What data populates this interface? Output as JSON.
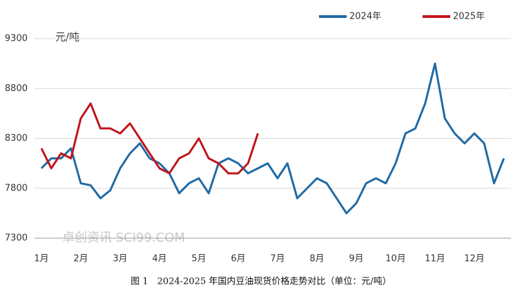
{
  "chart_data": {
    "type": "line",
    "caption": "图 1　2024-2025 年国内豆油现货价格走势对比（单位：元/吨）",
    "y_axis_label": "元/吨",
    "watermark": "卓创资讯 SCI99.COM",
    "categories": [
      "1月",
      null,
      null,
      null,
      "2月",
      null,
      null,
      null,
      "3月",
      null,
      null,
      null,
      "4月",
      null,
      null,
      null,
      "5月",
      null,
      null,
      null,
      "6月",
      null,
      null,
      null,
      "7月",
      null,
      null,
      null,
      "8月",
      null,
      null,
      null,
      "9月",
      null,
      null,
      null,
      "10月",
      null,
      null,
      null,
      "11月",
      null,
      null,
      null,
      "12月",
      null,
      null,
      null
    ],
    "series": [
      {
        "name": "2024年",
        "color": "#1f6aa5",
        "values": [
          8000,
          8100,
          8100,
          8200,
          7850,
          7830,
          7700,
          7780,
          8000,
          8150,
          8250,
          8100,
          8050,
          7950,
          7750,
          7850,
          7900,
          7750,
          8050,
          8100,
          8050,
          7950,
          8000,
          8050,
          7900,
          8050,
          7700,
          7800,
          7900,
          7850,
          7700,
          7550,
          7650,
          7850,
          7900,
          7850,
          8050,
          8350,
          8400,
          8650,
          9050,
          8500,
          8350,
          8250,
          8350,
          8250,
          7850,
          8100
        ]
      },
      {
        "name": "2025年",
        "color": "#c0141e",
        "values": [
          8200,
          8000,
          8150,
          8100,
          8500,
          8650,
          8400,
          8400,
          8350,
          8450,
          8300,
          8150,
          8000,
          7950,
          8100,
          8150,
          8300,
          8100,
          8050,
          7950,
          7950,
          8050,
          8350,
          null,
          null,
          null,
          null,
          null,
          null,
          null,
          null,
          null,
          null,
          null,
          null,
          null,
          null,
          null,
          null,
          null,
          null,
          null,
          null,
          null,
          null,
          null,
          null,
          null
        ]
      }
    ],
    "ylim": [
      7300,
      9300
    ],
    "yticks": [
      7300,
      7800,
      8300,
      8800,
      9300
    ],
    "grid": true,
    "legend": "top-right"
  }
}
